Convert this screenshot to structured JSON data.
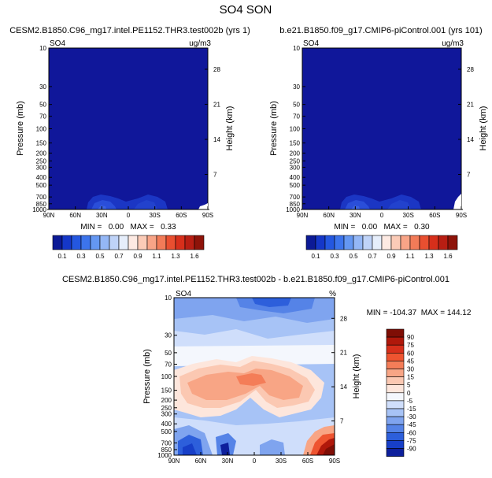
{
  "chart_data": {
    "type": "heatmap",
    "title": "SO4 SON",
    "common": {
      "xlabel": "",
      "ylabel": "Pressure (mb)",
      "y2label": "Height (km)",
      "xticks": [
        "90N",
        "60N",
        "30N",
        "0",
        "30S",
        "60S",
        "90S"
      ],
      "pressure_ticks": [
        "10",
        "30",
        "50",
        "70",
        "100",
        "150",
        "200",
        "250",
        "300",
        "400",
        "500",
        "700",
        "850",
        "1000"
      ],
      "pressure_tick_values": [
        10,
        30,
        50,
        70,
        100,
        150,
        200,
        250,
        300,
        400,
        500,
        700,
        850,
        1000
      ],
      "height_ticks": [
        "28",
        "21",
        "14",
        "7"
      ],
      "height_tick_values": [
        28,
        21,
        14,
        7
      ],
      "ylim": [
        1000,
        10
      ]
    },
    "panels": [
      {
        "title": "CESM2.B1850.C96_mg17.intel.PE1152.THR3.test002b (yrs 1)",
        "var_label": "SO4",
        "units": "ug/m3",
        "stats": "MIN =   0.00   MAX =   0.33",
        "fill": "#10179a"
      },
      {
        "title": "b.e21.B1850.f09_g17.CMIP6-piControl.001 (yrs 101)",
        "var_label": "SO4",
        "units": "ug/m3",
        "stats": "MIN =   0.00   MAX =   0.30",
        "fill": "#10179a"
      },
      {
        "title": "CESM2.B1850.C96_mg17.intel.PE1152.THR3.test002b - b.e21.B1850.f09_g17.CMIP6-piControl.001",
        "var_label": "SO4",
        "units": "%",
        "stats": "MIN = -104.37  MAX = 144.12"
      }
    ],
    "top_colorbar": {
      "labels": [
        "0.1",
        "0.3",
        "0.5",
        "0.7",
        "0.9",
        "1.1",
        "1.3",
        "1.6"
      ],
      "colors": [
        "#0c1a96",
        "#1537c8",
        "#2457e0",
        "#3c74ec",
        "#6497f2",
        "#94b7f6",
        "#bfd3f8",
        "#e6eefb",
        "#fdeae3",
        "#fbcbb7",
        "#f8a487",
        "#f27b58",
        "#e94f30",
        "#d72f1b",
        "#b81e13",
        "#8e1309"
      ]
    },
    "diff_colorbar": {
      "labels": [
        "90",
        "75",
        "60",
        "45",
        "30",
        "15",
        "5",
        "0",
        "-5",
        "-15",
        "-30",
        "-45",
        "-60",
        "-75",
        "-90"
      ],
      "colors": [
        "#7f0e05",
        "#b0180b",
        "#d72f1b",
        "#ee5430",
        "#f47d58",
        "#f8a585",
        "#fbc8b2",
        "#fde6dc",
        "#f4f7fd",
        "#cfdefb",
        "#a7c3f6",
        "#7fa4ef",
        "#5583e7",
        "#2d5fdb",
        "#173fc8",
        "#0d1f9c"
      ]
    }
  }
}
